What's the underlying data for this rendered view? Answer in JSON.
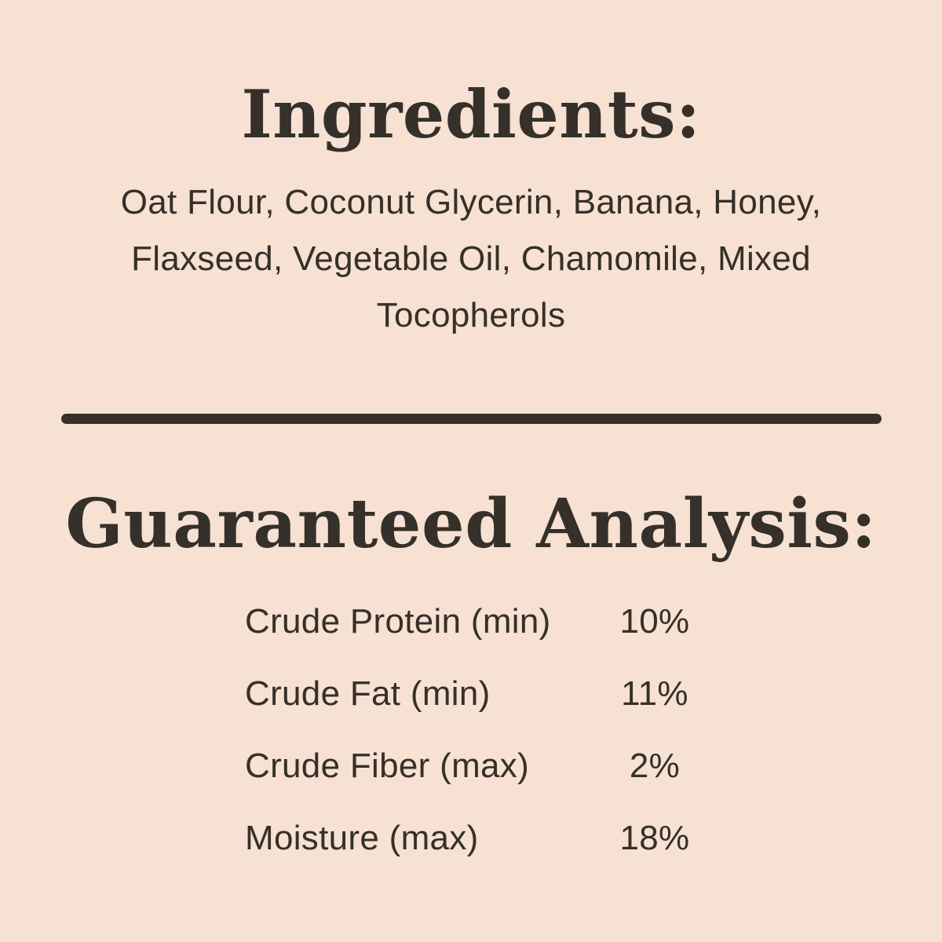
{
  "theme": {
    "background_color": "#f6e1d2",
    "text_color": "#353029"
  },
  "ingredients": {
    "title": "Ingredients:",
    "lines": [
      "Oat Flour, Coconut Glycerin, Banana, Honey,",
      "Flaxseed, Vegetable Oil, Chamomile, Mixed",
      "Tocopherols"
    ]
  },
  "guaranteed_analysis": {
    "title": "Guaranteed Analysis:",
    "rows": [
      {
        "label": "Crude Protein (min)",
        "value": "10%"
      },
      {
        "label": "Crude Fat (min)",
        "value": "11%"
      },
      {
        "label": "Crude Fiber (max)",
        "value": "2%"
      },
      {
        "label": "Moisture (max)",
        "value": "18%"
      }
    ]
  }
}
